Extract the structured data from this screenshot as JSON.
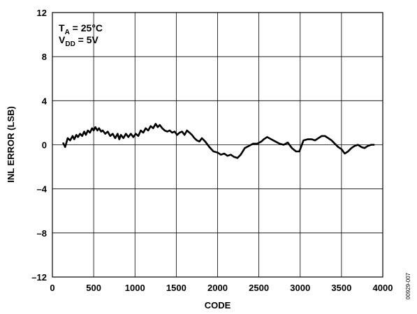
{
  "chart_data": {
    "type": "line",
    "xlabel": "CODE",
    "ylabel": "INL ERROR (LSB)",
    "xlim": [
      0,
      4000
    ],
    "ylim": [
      -12,
      12
    ],
    "xticks": [
      0,
      500,
      1000,
      1500,
      2000,
      2500,
      3000,
      3500,
      4000
    ],
    "yticks": [
      12,
      8,
      4,
      0,
      -4,
      -8,
      -12
    ],
    "ytick_labels": [
      "12",
      "8",
      "4",
      "0",
      "–4",
      "–8",
      "–12"
    ],
    "grid": true,
    "annotation": {
      "line1_main": "T",
      "line1_sub": "A",
      "line1_rest": " = 25°C",
      "line2_main": "V",
      "line2_sub": "DD",
      "line2_rest": " = 5V"
    },
    "figure_id": "00929-007",
    "series": [
      {
        "x": [
          128,
          155,
          185,
          215,
          245,
          265,
          290,
          310,
          335,
          360,
          385,
          405,
          430,
          455,
          480,
          500,
          520,
          545,
          565,
          590,
          610,
          640,
          670,
          700,
          730,
          760,
          790,
          810,
          830,
          860,
          890,
          920,
          950,
          980,
          1010,
          1040,
          1070,
          1100,
          1130,
          1160,
          1190,
          1220,
          1250,
          1275,
          1300,
          1330,
          1360,
          1390,
          1420,
          1450,
          1480,
          1510,
          1540,
          1570,
          1600,
          1630,
          1660,
          1690,
          1720,
          1750,
          1780,
          1810,
          1850,
          1900,
          1950,
          2000,
          2040,
          2080,
          2120,
          2160,
          2200,
          2240,
          2280,
          2330,
          2380,
          2430,
          2480,
          2530,
          2560,
          2600,
          2650,
          2700,
          2750,
          2800,
          2850,
          2900,
          2950,
          2990,
          3040,
          3090,
          3140,
          3180,
          3220,
          3260,
          3300,
          3340,
          3380,
          3420,
          3460,
          3500,
          3540,
          3580,
          3620,
          3660,
          3700,
          3740,
          3780,
          3820,
          3860,
          3900
        ],
        "y": [
          0.2,
          -0.2,
          0.6,
          0.4,
          0.8,
          0.5,
          0.9,
          0.7,
          1.0,
          0.8,
          1.2,
          0.9,
          1.3,
          1.1,
          1.5,
          1.3,
          1.6,
          1.3,
          1.5,
          1.2,
          1.3,
          1.0,
          1.2,
          0.8,
          1.0,
          0.6,
          1.0,
          0.5,
          0.9,
          0.6,
          1.0,
          0.7,
          1.0,
          0.7,
          1.0,
          0.8,
          1.3,
          1.1,
          1.5,
          1.3,
          1.7,
          1.5,
          1.9,
          1.6,
          1.8,
          1.5,
          1.3,
          1.2,
          1.3,
          1.1,
          1.2,
          0.9,
          1.1,
          1.2,
          0.9,
          1.3,
          1.1,
          0.9,
          0.6,
          0.4,
          0.3,
          0.6,
          0.3,
          -0.2,
          -0.6,
          -0.7,
          -0.9,
          -0.8,
          -1.0,
          -0.9,
          -1.1,
          -1.2,
          -0.9,
          -0.3,
          -0.1,
          0.1,
          0.1,
          0.3,
          0.5,
          0.7,
          0.5,
          0.3,
          0.1,
          0.0,
          0.2,
          -0.3,
          -0.6,
          -0.6,
          0.4,
          0.5,
          0.5,
          0.4,
          0.6,
          0.8,
          0.8,
          0.6,
          0.4,
          0.1,
          -0.2,
          -0.4,
          -0.8,
          -0.6,
          -0.3,
          -0.1,
          0.0,
          -0.2,
          -0.3,
          -0.1,
          0.0,
          0.0
        ]
      }
    ]
  }
}
